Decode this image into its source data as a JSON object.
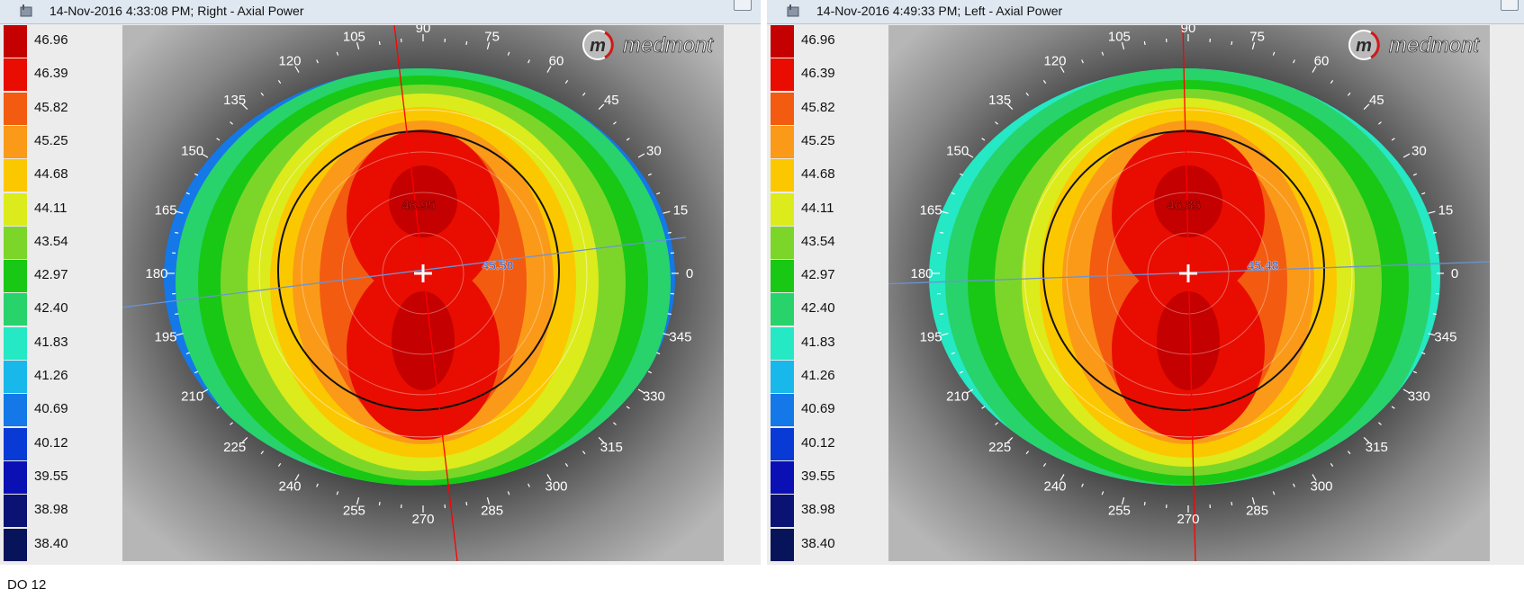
{
  "legend": {
    "values": [
      "46.96",
      "46.39",
      "45.82",
      "45.25",
      "44.68",
      "44.11",
      "43.54",
      "42.97",
      "42.40",
      "41.83",
      "41.26",
      "40.69",
      "40.12",
      "39.55",
      "38.98",
      "38.40"
    ],
    "colors": [
      "#c40000",
      "#e80d00",
      "#f35b10",
      "#fb9a18",
      "#fbc800",
      "#dceb1c",
      "#7cd62a",
      "#18c814",
      "#28d36c",
      "#25e8c4",
      "#18b8ea",
      "#1478e8",
      "#0a3ad6",
      "#0a10b4",
      "#0a1273",
      "#07145a"
    ]
  },
  "views": [
    {
      "title": "14-Nov-2016 4:33:08 PM; Right - Axial Power",
      "brand": "medmont",
      "apex_value": "46.95",
      "axis_value": "45.50",
      "meridian_labels": [
        "90",
        "105",
        "75",
        "120",
        "60",
        "135",
        "45",
        "150",
        "30",
        "165",
        "15",
        "180",
        "0",
        "195",
        "345",
        "210",
        "330",
        "225",
        "315",
        "240",
        "300",
        "255",
        "285",
        "270"
      ]
    },
    {
      "title": "14-Nov-2016 4:49:33 PM; Left - Axial Power",
      "brand": "medmont",
      "apex_value": "46.85",
      "axis_value": "45.48",
      "meridian_labels": [
        "90",
        "105",
        "75",
        "120",
        "60",
        "135",
        "45",
        "150",
        "30",
        "165",
        "15",
        "180",
        "0",
        "195",
        "345",
        "210",
        "330",
        "225",
        "315",
        "240",
        "300",
        "255",
        "285",
        "270"
      ]
    }
  ],
  "footer_note": "DO 12",
  "icons": [
    "window-icon",
    "panel-button-icon",
    "reference-cross-icon",
    "brand-logo-icon"
  ]
}
